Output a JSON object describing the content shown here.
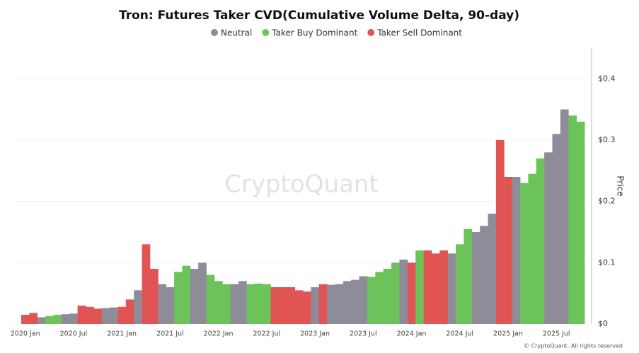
{
  "chart_data": {
    "type": "bar",
    "title": "Tron: Futures Taker CVD(Cumulative Volume Delta, 90-day)",
    "watermark": "CryptoQuant",
    "footer": "© CryptoQuant. All rights reserved",
    "y_label": "Price",
    "categories": [
      "2020 Jan",
      null,
      null,
      null,
      null,
      null,
      "2020 Jul",
      null,
      null,
      null,
      null,
      null,
      "2021 Jan",
      null,
      null,
      null,
      null,
      null,
      "2021 Jul",
      null,
      null,
      null,
      null,
      null,
      "2022 Jan",
      null,
      null,
      null,
      null,
      null,
      "2022 Jul",
      null,
      null,
      null,
      null,
      null,
      "2023 Jan",
      null,
      null,
      null,
      null,
      null,
      "2023 Jul",
      null,
      null,
      null,
      null,
      null,
      "2024 Jan",
      null,
      null,
      null,
      null,
      null,
      "2024 Jul",
      null,
      null,
      null,
      null,
      null,
      "2025 Jan",
      null,
      null,
      null,
      null,
      null,
      "2025 Jul",
      null,
      null,
      null
    ],
    "series": [
      {
        "name": "Neutral",
        "color": "#8e8c99",
        "values": [
          null,
          null,
          0.011,
          null,
          null,
          0.016,
          0.017,
          null,
          null,
          null,
          0.026,
          0.027,
          null,
          null,
          0.055,
          null,
          null,
          0.065,
          0.06,
          null,
          null,
          0.09,
          0.1,
          null,
          null,
          null,
          0.065,
          0.07,
          null,
          null,
          null,
          null,
          null,
          null,
          null,
          null,
          0.06,
          null,
          0.064,
          0.065,
          0.07,
          0.072,
          0.078,
          null,
          null,
          null,
          null,
          0.105,
          null,
          null,
          null,
          null,
          null,
          0.115,
          null,
          null,
          0.15,
          0.16,
          0.18,
          null,
          null,
          0.24,
          null,
          null,
          null,
          0.28,
          0.31,
          0.35,
          null,
          null
        ]
      },
      {
        "name": "Taker Buy Dominant",
        "color": "#6cc35a",
        "values": [
          null,
          null,
          null,
          0.013,
          0.015,
          null,
          null,
          null,
          null,
          null,
          null,
          null,
          null,
          null,
          null,
          null,
          null,
          null,
          null,
          0.085,
          0.095,
          null,
          null,
          0.08,
          0.07,
          0.065,
          null,
          null,
          0.065,
          0.066,
          0.065,
          null,
          null,
          null,
          null,
          null,
          null,
          null,
          null,
          null,
          null,
          null,
          null,
          0.077,
          0.085,
          0.09,
          0.1,
          null,
          null,
          0.12,
          null,
          null,
          null,
          null,
          0.13,
          0.155,
          null,
          null,
          null,
          null,
          null,
          null,
          0.23,
          0.245,
          0.27,
          null,
          null,
          null,
          0.34,
          0.33
        ]
      },
      {
        "name": "Taker Sell Dominant",
        "color": "#e05454",
        "values": [
          0.015,
          0.018,
          null,
          null,
          null,
          null,
          null,
          0.03,
          0.028,
          0.025,
          null,
          null,
          0.028,
          0.04,
          null,
          0.13,
          0.09,
          null,
          null,
          null,
          null,
          null,
          null,
          null,
          null,
          null,
          null,
          null,
          null,
          null,
          null,
          0.06,
          0.06,
          0.06,
          0.055,
          0.053,
          null,
          0.065,
          null,
          null,
          null,
          null,
          null,
          null,
          null,
          null,
          null,
          null,
          0.1,
          null,
          0.12,
          0.115,
          0.12,
          null,
          null,
          null,
          null,
          null,
          null,
          0.3,
          0.24,
          null,
          null,
          null,
          null,
          null,
          null,
          null,
          null,
          null
        ]
      }
    ],
    "ylim": [
      0,
      0.45
    ],
    "yticks": [
      {
        "value": 0,
        "label": "$0"
      },
      {
        "value": 0.1,
        "label": "$0.1"
      },
      {
        "value": 0.2,
        "label": "$0.2"
      },
      {
        "value": 0.3,
        "label": "$0.3"
      },
      {
        "value": 0.4,
        "label": "$0.4"
      }
    ],
    "grid": true
  }
}
